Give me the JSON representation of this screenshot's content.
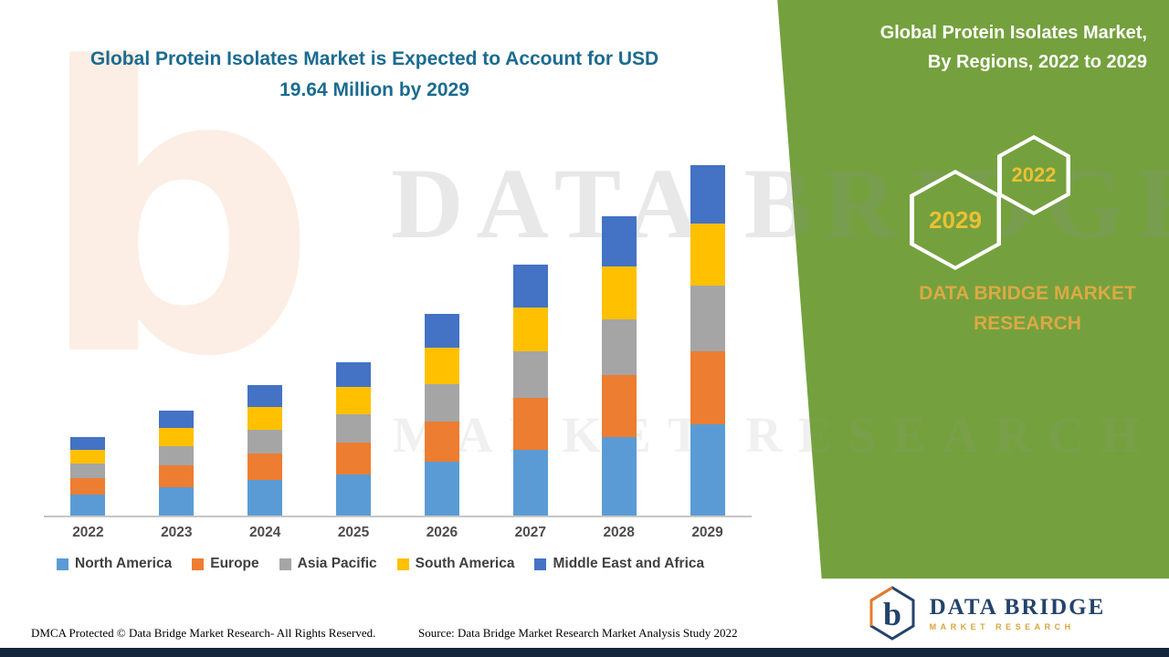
{
  "title": {
    "line1": "Global Protein Isolates Market is Expected to Account for USD",
    "line2": "19.64 Million by 2029"
  },
  "panel": {
    "heading_line1": "Global Protein Isolates Market,",
    "heading_line2": "By Regions, 2022 to 2029",
    "hex_2029": "2029",
    "hex_2022": "2022",
    "brand_line1": "DATA BRIDGE MARKET",
    "brand_line2": "RESEARCH",
    "color": "#74A13E"
  },
  "chart_data": {
    "type": "bar",
    "stacked": true,
    "title": "Global Protein Isolates Market, By Regions, 2022 to 2029",
    "unit": "USD Million",
    "categories": [
      "2022",
      "2023",
      "2024",
      "2025",
      "2026",
      "2027",
      "2028",
      "2029"
    ],
    "series": [
      {
        "name": "North America",
        "color": "#5B9BD5",
        "values": [
          1.2,
          1.6,
          2.0,
          2.3,
          3.0,
          3.7,
          4.4,
          5.1
        ]
      },
      {
        "name": "Europe",
        "color": "#ED7D31",
        "values": [
          0.9,
          1.2,
          1.5,
          1.8,
          2.3,
          2.9,
          3.5,
          4.1
        ]
      },
      {
        "name": "Asia Pacific",
        "color": "#A5A5A5",
        "values": [
          0.8,
          1.1,
          1.3,
          1.6,
          2.1,
          2.6,
          3.1,
          3.7
        ]
      },
      {
        "name": "South America",
        "color": "#FFC000",
        "values": [
          0.8,
          1.0,
          1.3,
          1.5,
          2.0,
          2.5,
          3.0,
          3.5
        ]
      },
      {
        "name": "Middle East and Africa",
        "color": "#4472C4",
        "values": [
          0.7,
          1.0,
          1.2,
          1.4,
          1.9,
          2.4,
          2.8,
          3.24
        ]
      }
    ],
    "totals": [
      4.4,
      5.9,
      7.3,
      8.6,
      11.3,
      14.1,
      16.8,
      19.64
    ],
    "ylim": [
      0,
      20
    ],
    "grid": false,
    "legend_position": "bottom"
  },
  "watermark": {
    "letter": "b",
    "line1": "DATA BRIDGE",
    "line2": "MARKET RESEARCH"
  },
  "footer": {
    "dmca": "DMCA Protected © Data Bridge Market Research- All Rights Reserved.",
    "source": "Source: Data Bridge Market Research Market Analysis Study 2022"
  },
  "logo": {
    "brand": "DATA BRIDGE",
    "sub": "MARKET RESEARCH"
  }
}
